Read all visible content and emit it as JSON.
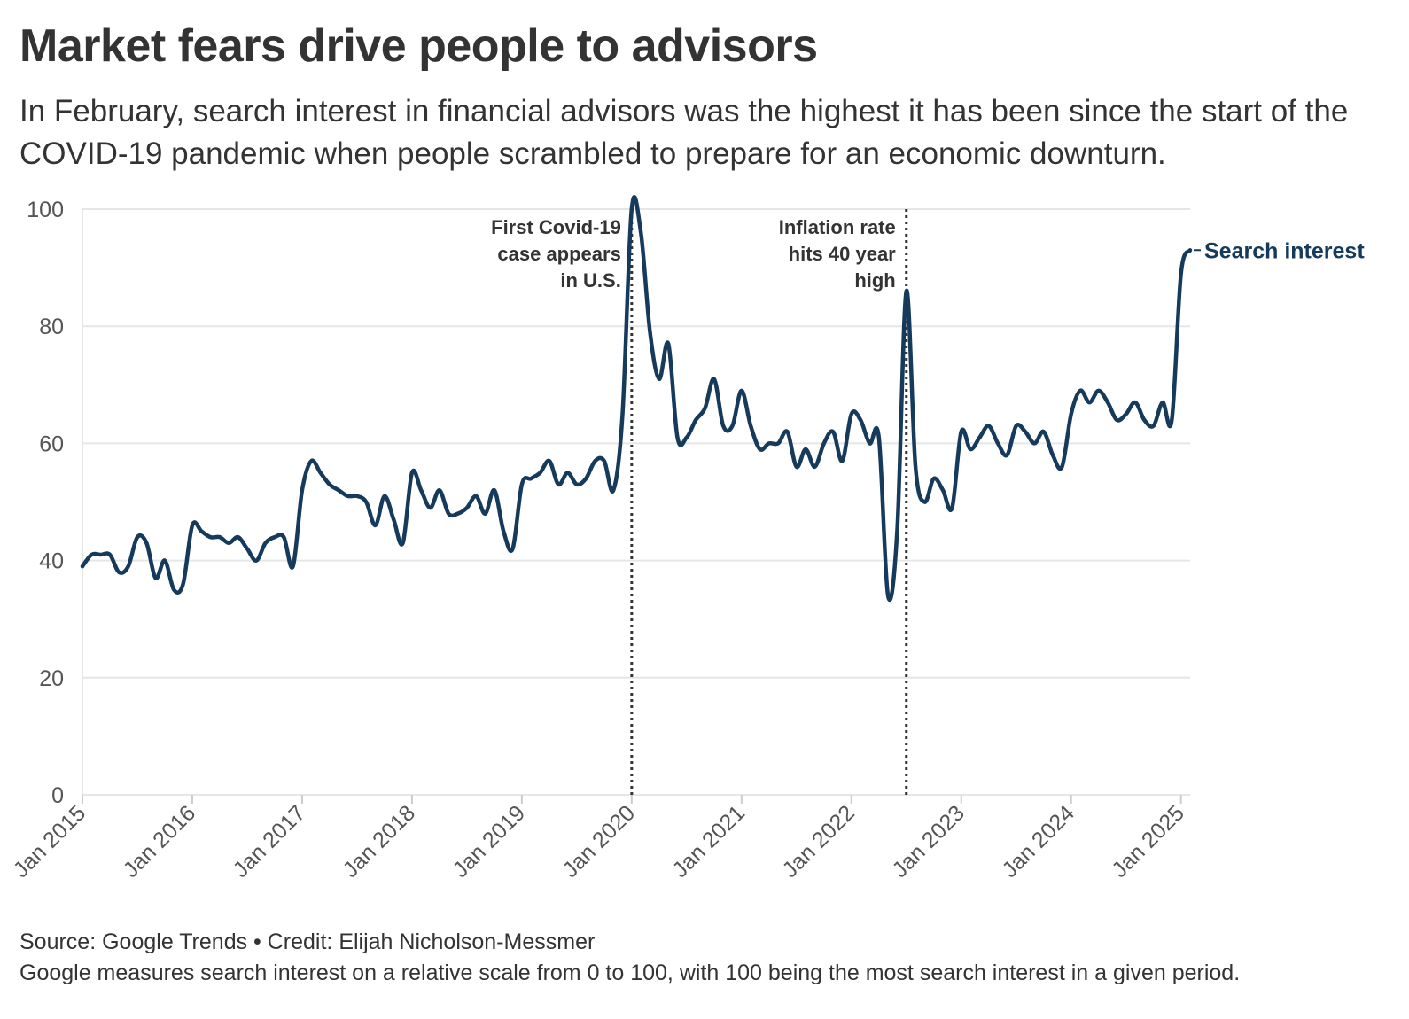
{
  "title": "Market fears drive people to advisors",
  "subtitle": "In February, search interest in financial advisors was the highest it has been since the start of the COVID-19 pandemic when people scrambled to prepare for an economic downturn.",
  "footer": {
    "source": "Source: Google Trends • Credit: Elijah Nicholson-Messmer",
    "note": "Google measures search interest on a relative scale from 0 to 100, with 100 being the most search interest in a given period."
  },
  "colors": {
    "line": "#163a5c",
    "grid": "#e6e6e6",
    "axis": "#cccccc",
    "annotation_line": "#333333"
  },
  "chart_data": {
    "type": "line",
    "title": "Market fears drive people to advisors",
    "xlabel": "",
    "ylabel": "",
    "ylim": [
      0,
      100
    ],
    "xlim": [
      "2015-01",
      "2025-02"
    ],
    "grid": true,
    "legend": "none (direct label at line end)",
    "y_ticks": [
      "0",
      "20",
      "40",
      "60",
      "80",
      "100"
    ],
    "x_ticks": [
      {
        "value": "2015-01",
        "label": "Jan 2015"
      },
      {
        "value": "2016-01",
        "label": "Jan 2016"
      },
      {
        "value": "2017-01",
        "label": "Jan 2017"
      },
      {
        "value": "2018-01",
        "label": "Jan 2018"
      },
      {
        "value": "2019-01",
        "label": "Jan 2019"
      },
      {
        "value": "2020-01",
        "label": "Jan 2020"
      },
      {
        "value": "2021-01",
        "label": "Jan 2021"
      },
      {
        "value": "2022-01",
        "label": "Jan 2022"
      },
      {
        "value": "2023-01",
        "label": "Jan 2023"
      },
      {
        "value": "2024-01",
        "label": "Jan 2024"
      },
      {
        "value": "2025-01",
        "label": "Jan 2025"
      }
    ],
    "annotations": [
      {
        "x": "2020-01",
        "lines": [
          "First Covid-19",
          "case appears",
          "in U.S."
        ]
      },
      {
        "x": "2022-07",
        "lines": [
          "Inflation rate",
          "hits 40 year",
          "high"
        ]
      }
    ],
    "series": [
      {
        "name": "Search interest",
        "x": [
          "2015-01",
          "2015-02",
          "2015-03",
          "2015-04",
          "2015-05",
          "2015-06",
          "2015-07",
          "2015-08",
          "2015-09",
          "2015-10",
          "2015-11",
          "2015-12",
          "2016-01",
          "2016-02",
          "2016-03",
          "2016-04",
          "2016-05",
          "2016-06",
          "2016-07",
          "2016-08",
          "2016-09",
          "2016-10",
          "2016-11",
          "2016-12",
          "2017-01",
          "2017-02",
          "2017-03",
          "2017-04",
          "2017-05",
          "2017-06",
          "2017-07",
          "2017-08",
          "2017-09",
          "2017-10",
          "2017-11",
          "2017-12",
          "2018-01",
          "2018-02",
          "2018-03",
          "2018-04",
          "2018-05",
          "2018-06",
          "2018-07",
          "2018-08",
          "2018-09",
          "2018-10",
          "2018-11",
          "2018-12",
          "2019-01",
          "2019-02",
          "2019-03",
          "2019-04",
          "2019-05",
          "2019-06",
          "2019-07",
          "2019-08",
          "2019-09",
          "2019-10",
          "2019-11",
          "2019-12",
          "2020-01",
          "2020-02",
          "2020-03",
          "2020-04",
          "2020-05",
          "2020-06",
          "2020-07",
          "2020-08",
          "2020-09",
          "2020-10",
          "2020-11",
          "2020-12",
          "2021-01",
          "2021-02",
          "2021-03",
          "2021-04",
          "2021-05",
          "2021-06",
          "2021-07",
          "2021-08",
          "2021-09",
          "2021-10",
          "2021-11",
          "2021-12",
          "2022-01",
          "2022-02",
          "2022-03",
          "2022-04",
          "2022-05",
          "2022-06",
          "2022-07",
          "2022-08",
          "2022-09",
          "2022-10",
          "2022-11",
          "2022-12",
          "2023-01",
          "2023-02",
          "2023-03",
          "2023-04",
          "2023-05",
          "2023-06",
          "2023-07",
          "2023-08",
          "2023-09",
          "2023-10",
          "2023-11",
          "2023-12",
          "2024-01",
          "2024-02",
          "2024-03",
          "2024-04",
          "2024-05",
          "2024-06",
          "2024-07",
          "2024-08",
          "2024-09",
          "2024-10",
          "2024-11",
          "2024-12",
          "2025-01",
          "2025-02"
        ],
        "values": [
          39,
          41,
          41,
          41,
          38,
          39,
          44,
          43,
          37,
          40,
          35,
          36,
          46,
          45,
          44,
          44,
          43,
          44,
          42,
          40,
          43,
          44,
          44,
          39,
          52,
          57,
          55,
          53,
          52,
          51,
          51,
          50,
          46,
          51,
          47,
          43,
          55,
          52,
          49,
          52,
          48,
          48,
          49,
          51,
          48,
          52,
          45,
          42,
          53,
          54,
          55,
          57,
          53,
          55,
          53,
          54,
          57,
          57,
          52,
          65,
          100,
          96,
          79,
          71,
          77,
          61,
          61,
          64,
          66,
          71,
          63,
          63,
          69,
          63,
          59,
          60,
          60,
          62,
          56,
          59,
          56,
          60,
          62,
          57,
          65,
          64,
          60,
          61,
          34,
          45,
          86,
          56,
          50,
          54,
          52,
          49,
          62,
          59,
          61,
          63,
          60,
          58,
          63,
          62,
          60,
          62,
          58,
          56,
          65,
          69,
          67,
          69,
          67,
          64,
          65,
          67,
          64,
          63,
          67,
          64,
          89,
          93
        ]
      }
    ]
  }
}
